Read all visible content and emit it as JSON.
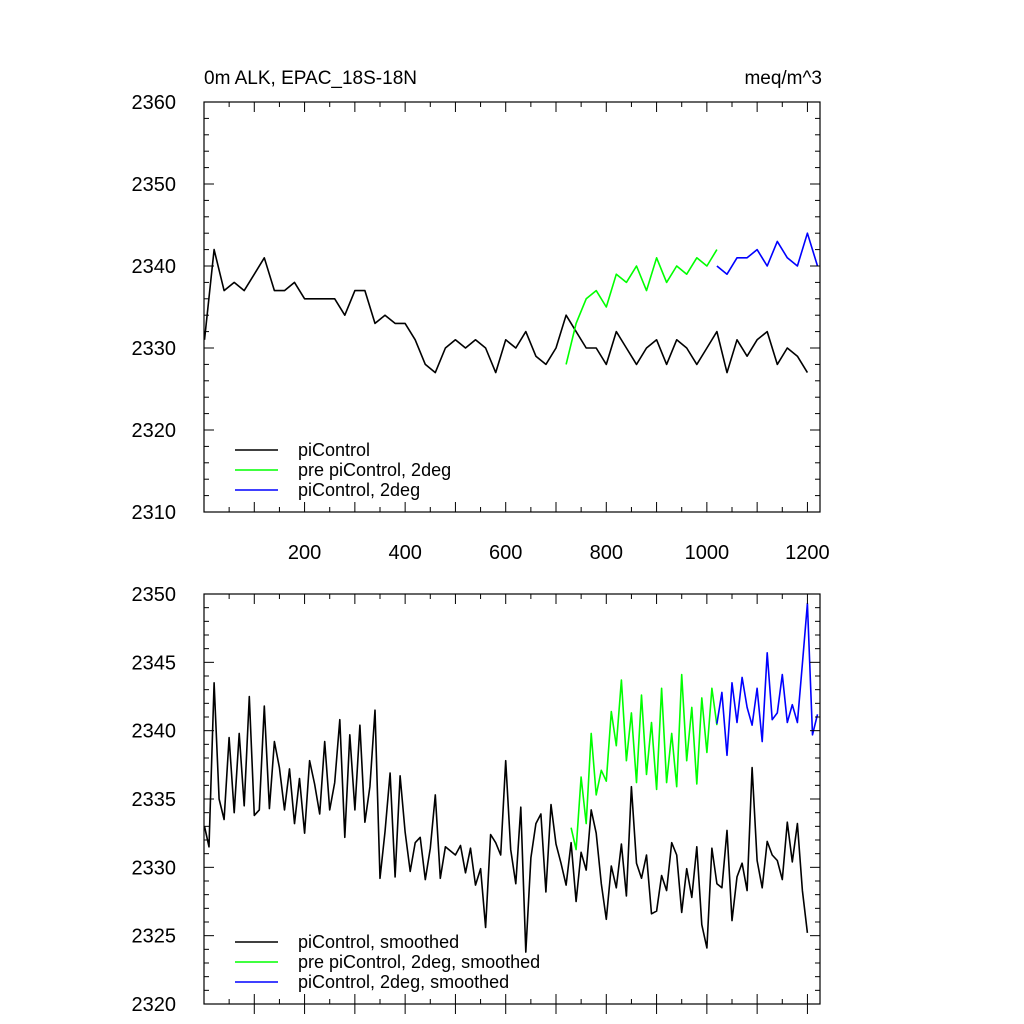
{
  "header": {
    "title": "0m ALK, EPAC_18S-18N",
    "units": "meq/m^3"
  },
  "colors": {
    "piControl": "#000000",
    "pre_piControl_2deg": "#00ff00",
    "piControl_2deg": "#0000ff",
    "axis": "#000000"
  },
  "chart_data": [
    {
      "type": "line",
      "title": "0m ALK, EPAC_18S-18N",
      "units": "meq/m^3",
      "xlim": [
        0,
        1225
      ],
      "ylim": [
        2310,
        2360
      ],
      "xticks": [
        200,
        400,
        600,
        800,
        1000,
        1200
      ],
      "yticks": [
        2310,
        2320,
        2330,
        2340,
        2350,
        2360
      ],
      "legend_position": "bottom-left",
      "series": [
        {
          "name": "piControl",
          "color": "#000000",
          "x": [
            1,
            20,
            40,
            60,
            80,
            100,
            120,
            140,
            160,
            180,
            200,
            220,
            240,
            260,
            280,
            300,
            320,
            340,
            360,
            380,
            400,
            420,
            440,
            460,
            480,
            500,
            520,
            540,
            560,
            580,
            600,
            620,
            640,
            660,
            680,
            700,
            720,
            740,
            760,
            780,
            800,
            820,
            840,
            860,
            880,
            900,
            920,
            940,
            960,
            980,
            1000,
            1020,
            1040,
            1060,
            1080,
            1100,
            1120,
            1140,
            1160,
            1180,
            1200
          ],
          "y": [
            2331,
            2342,
            2337,
            2338,
            2337,
            2339,
            2341,
            2337,
            2337,
            2338,
            2336,
            2336,
            2336,
            2336,
            2334,
            2337,
            2337,
            2333,
            2334,
            2333,
            2333,
            2331,
            2328,
            2327,
            2330,
            2331,
            2330,
            2331,
            2330,
            2327,
            2331,
            2330,
            2332,
            2329,
            2328,
            2330,
            2334,
            2332,
            2330,
            2330,
            2328,
            2332,
            2330,
            2328,
            2330,
            2331,
            2328,
            2331,
            2330,
            2328,
            2330,
            2332,
            2327,
            2331,
            2329,
            2331,
            2332,
            2328,
            2330,
            2329,
            2327
          ]
        },
        {
          "name": "pre piControl, 2deg",
          "color": "#00ff00",
          "x": [
            720,
            740,
            760,
            780,
            800,
            820,
            840,
            860,
            880,
            900,
            920,
            940,
            960,
            980,
            1000,
            1020
          ],
          "y": [
            2328,
            2333,
            2336,
            2337,
            2335,
            2339,
            2338,
            2340,
            2337,
            2341,
            2338,
            2340,
            2339,
            2341,
            2340,
            2342
          ]
        },
        {
          "name": "piControl, 2deg",
          "color": "#0000ff",
          "x": [
            1020,
            1040,
            1060,
            1080,
            1100,
            1120,
            1140,
            1160,
            1180,
            1200,
            1220
          ],
          "y": [
            2340,
            2339,
            2341,
            2341,
            2342,
            2340,
            2343,
            2341,
            2340,
            2344,
            2340
          ]
        }
      ]
    },
    {
      "type": "line",
      "xlim": [
        0,
        1225
      ],
      "ylim": [
        2320,
        2350
      ],
      "xticks": [
        200,
        400,
        600,
        800,
        1000,
        1200
      ],
      "yticks": [
        2320,
        2325,
        2330,
        2335,
        2340,
        2345,
        2350
      ],
      "legend_position": "bottom-left",
      "series": [
        {
          "name": "piControl, smoothed",
          "color": "#000000",
          "x": [
            1,
            10,
            20,
            30,
            40,
            50,
            60,
            70,
            80,
            90,
            100,
            110,
            120,
            130,
            140,
            150,
            160,
            170,
            180,
            190,
            200,
            210,
            220,
            230,
            240,
            250,
            260,
            270,
            280,
            290,
            300,
            310,
            320,
            330,
            340,
            350,
            360,
            370,
            380,
            390,
            400,
            410,
            420,
            430,
            440,
            450,
            460,
            470,
            480,
            490,
            500,
            510,
            520,
            530,
            540,
            550,
            560,
            570,
            580,
            590,
            600,
            610,
            620,
            630,
            640,
            650,
            660,
            670,
            680,
            690,
            700,
            710,
            720,
            730,
            740,
            750,
            760,
            770,
            780,
            790,
            800,
            810,
            820,
            830,
            840,
            850,
            860,
            870,
            880,
            890,
            900,
            910,
            920,
            930,
            940,
            950,
            960,
            970,
            980,
            990,
            1000,
            1010,
            1020,
            1030,
            1040,
            1050,
            1060,
            1070,
            1080,
            1090,
            1100,
            1110,
            1120,
            1130,
            1140,
            1150,
            1160,
            1170,
            1180,
            1190,
            1200
          ],
          "y": [
            2333,
            2331.5,
            2343.5,
            2335,
            2333.5,
            2339.5,
            2334,
            2339.8,
            2334.5,
            2342.5,
            2333.8,
            2334.2,
            2341.8,
            2334.3,
            2339.2,
            2337.3,
            2334.2,
            2337.2,
            2333.2,
            2336.5,
            2332.5,
            2337.8,
            2336.1,
            2333.9,
            2339.2,
            2334.2,
            2336.2,
            2340.8,
            2332.2,
            2339.7,
            2334.2,
            2340.4,
            2333.3,
            2335.9,
            2341.5,
            2329.2,
            2332.6,
            2336.9,
            2329.3,
            2336.7,
            2332.6,
            2329.7,
            2331.8,
            2332.2,
            2329.1,
            2331.4,
            2335.3,
            2329.2,
            2331.5,
            2331.2,
            2330.9,
            2331.6,
            2329.6,
            2331.4,
            2328.7,
            2329.9,
            2325.6,
            2332.4,
            2331.8,
            2330.9,
            2337.8,
            2331.3,
            2328.8,
            2334.4,
            2323.8,
            2330.7,
            2333.2,
            2333.9,
            2328.2,
            2334.6,
            2331.7,
            2330.3,
            2328.7,
            2331.8,
            2327.5,
            2331.1,
            2329.8,
            2334.2,
            2332.5,
            2328.8,
            2326.2,
            2330.1,
            2328.5,
            2331.7,
            2327.9,
            2335.9,
            2330.3,
            2329.2,
            2330.9,
            2326.6,
            2326.8,
            2329.4,
            2328.3,
            2331.8,
            2330.9,
            2326.7,
            2329.9,
            2327.8,
            2331.5,
            2325.8,
            2324.1,
            2331.4,
            2328.8,
            2328.5,
            2332.7,
            2326.1,
            2329.3,
            2330.3,
            2328.3,
            2337.3,
            2330.5,
            2328.5,
            2331.9,
            2330.9,
            2330.5,
            2329.1,
            2333.3,
            2330.4,
            2333.2,
            2328.3,
            2325.2
          ]
        },
        {
          "name": "pre piControl, 2deg, smoothed",
          "color": "#00ff00",
          "x": [
            730,
            740,
            750,
            760,
            770,
            780,
            790,
            800,
            810,
            820,
            830,
            840,
            850,
            860,
            870,
            880,
            890,
            900,
            910,
            920,
            930,
            940,
            950,
            960,
            970,
            980,
            990,
            1000,
            1010,
            1020
          ],
          "y": [
            2332.9,
            2331.3,
            2336.6,
            2333.2,
            2339.8,
            2335.3,
            2337.1,
            2336.3,
            2341.4,
            2338.9,
            2343.7,
            2337.8,
            2341.3,
            2336.2,
            2342.6,
            2336.8,
            2340.6,
            2335.7,
            2343.1,
            2336.2,
            2339.8,
            2335.9,
            2344.1,
            2337.8,
            2341.7,
            2336.1,
            2342.4,
            2338.4,
            2343.1,
            2340.4
          ]
        },
        {
          "name": "piControl, 2deg, smoothed",
          "color": "#0000ff",
          "x": [
            1020,
            1030,
            1040,
            1050,
            1060,
            1070,
            1080,
            1090,
            1100,
            1110,
            1120,
            1130,
            1140,
            1150,
            1160,
            1170,
            1180,
            1190,
            1200,
            1210,
            1220
          ],
          "y": [
            2340.5,
            2342.8,
            2338.2,
            2343.5,
            2340.6,
            2343.9,
            2341.7,
            2340.4,
            2343.1,
            2339.2,
            2345.7,
            2340.8,
            2341.3,
            2344.1,
            2340.6,
            2341.9,
            2340.6,
            2344.9,
            2349.3,
            2339.7,
            2341.2
          ]
        }
      ]
    }
  ]
}
